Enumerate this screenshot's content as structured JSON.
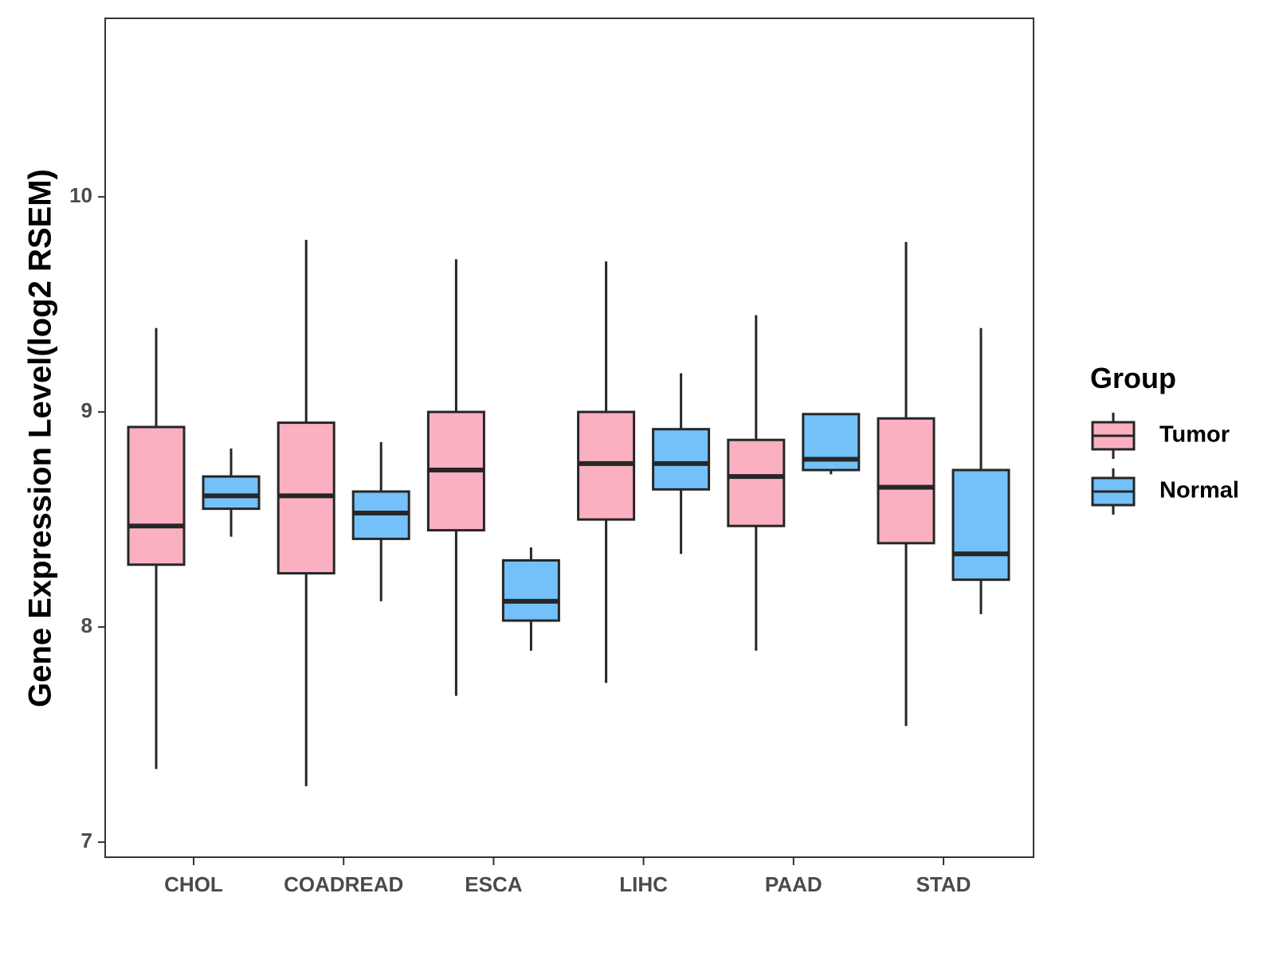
{
  "chart_data": {
    "type": "boxplot",
    "title": "",
    "xlabel": "",
    "ylabel": "Gene Expression Level(log2 RSEM)",
    "ylim": [
      6.93,
      10.83
    ],
    "yticks": [
      7,
      8,
      9,
      10
    ],
    "ytick_labels": [
      "7",
      "8",
      "9",
      "10"
    ],
    "categories": [
      "CHOL",
      "COADREAD",
      "ESCA",
      "LIHC",
      "PAAD",
      "STAD"
    ],
    "legend": {
      "title": "Group",
      "position": "right",
      "entries": [
        "Tumor",
        "Normal"
      ]
    },
    "colors": {
      "Tumor": "#fbb0c1",
      "Normal": "#74c1f9",
      "outline": "#262626",
      "axis": "#333333"
    },
    "series": [
      {
        "name": "Tumor",
        "boxes": [
          {
            "category": "CHOL",
            "min": 7.34,
            "q1": 8.29,
            "median": 8.47,
            "q3": 8.93,
            "max": 9.39
          },
          {
            "category": "COADREAD",
            "min": 7.26,
            "q1": 8.25,
            "median": 8.61,
            "q3": 8.95,
            "max": 9.8
          },
          {
            "category": "ESCA",
            "min": 7.68,
            "q1": 8.45,
            "median": 8.73,
            "q3": 9.0,
            "max": 9.71
          },
          {
            "category": "LIHC",
            "min": 7.74,
            "q1": 8.5,
            "median": 8.76,
            "q3": 9.0,
            "max": 9.7
          },
          {
            "category": "PAAD",
            "min": 7.89,
            "q1": 8.47,
            "median": 8.7,
            "q3": 8.87,
            "max": 9.45
          },
          {
            "category": "STAD",
            "min": 7.54,
            "q1": 8.39,
            "median": 8.65,
            "q3": 8.97,
            "max": 9.79
          }
        ]
      },
      {
        "name": "Normal",
        "boxes": [
          {
            "category": "CHOL",
            "min": 8.42,
            "q1": 8.55,
            "median": 8.61,
            "q3": 8.7,
            "max": 8.83
          },
          {
            "category": "COADREAD",
            "min": 8.12,
            "q1": 8.41,
            "median": 8.53,
            "q3": 8.63,
            "max": 8.86
          },
          {
            "category": "ESCA",
            "min": 7.89,
            "q1": 8.03,
            "median": 8.12,
            "q3": 8.31,
            "max": 8.37
          },
          {
            "category": "LIHC",
            "min": 8.34,
            "q1": 8.64,
            "median": 8.76,
            "q3": 8.92,
            "max": 9.18
          },
          {
            "category": "PAAD",
            "min": 8.71,
            "q1": 8.73,
            "median": 8.78,
            "q3": 8.99,
            "max": 8.99
          },
          {
            "category": "STAD",
            "min": 8.06,
            "q1": 8.22,
            "median": 8.34,
            "q3": 8.73,
            "max": 9.39
          }
        ]
      }
    ]
  }
}
